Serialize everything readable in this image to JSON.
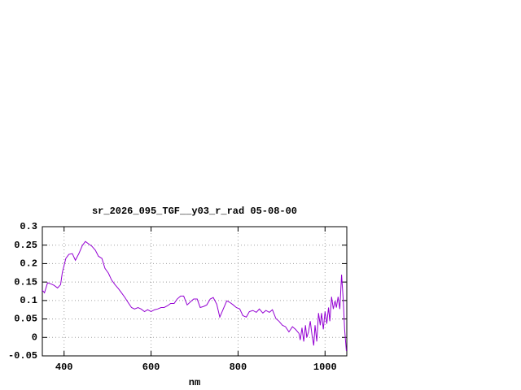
{
  "chart_data": {
    "type": "line",
    "title": "sr_2026_095_TGF__y03_r_rad 05-08-00",
    "x_label": "nm",
    "xlim": [
      350,
      1050
    ],
    "xticks": [
      400,
      600,
      800,
      1000
    ],
    "ylim": [
      -0.05,
      0.3
    ],
    "yticks": [
      0.3,
      0.25,
      0.2,
      0.15,
      0.1,
      0.05,
      0,
      -0.05
    ],
    "grid": true,
    "series": [
      {
        "color": "#9400d3",
        "x": [
          350,
          355,
          362,
          370,
          377,
          385,
          392,
          396,
          404,
          411,
          419,
          426,
          434,
          442,
          449,
          457,
          464,
          472,
          479,
          487,
          494,
          502,
          509,
          517,
          525,
          532,
          540,
          547,
          555,
          562,
          570,
          577,
          585,
          592,
          600,
          608,
          615,
          623,
          630,
          638,
          645,
          653,
          660,
          668,
          675,
          683,
          691,
          698,
          706,
          713,
          721,
          728,
          736,
          743,
          751,
          758,
          766,
          774,
          781,
          789,
          796,
          804,
          811,
          819,
          826,
          834,
          842,
          849,
          857,
          864,
          872,
          879,
          887,
          894,
          902,
          909,
          917,
          925,
          932,
          940,
          943,
          947,
          951,
          955,
          958,
          962,
          966,
          970,
          974,
          977,
          981,
          985,
          989,
          992,
          996,
          1000,
          1004,
          1008,
          1011,
          1015,
          1019,
          1023,
          1026,
          1030,
          1034,
          1038,
          1042,
          1045,
          1049
        ],
        "values": [
          0.128,
          0.121,
          0.148,
          0.145,
          0.141,
          0.134,
          0.143,
          0.176,
          0.214,
          0.225,
          0.227,
          0.209,
          0.227,
          0.249,
          0.26,
          0.253,
          0.247,
          0.236,
          0.22,
          0.214,
          0.187,
          0.174,
          0.156,
          0.143,
          0.132,
          0.121,
          0.108,
          0.095,
          0.081,
          0.077,
          0.081,
          0.077,
          0.07,
          0.075,
          0.07,
          0.075,
          0.077,
          0.081,
          0.081,
          0.086,
          0.092,
          0.092,
          0.104,
          0.112,
          0.112,
          0.088,
          0.097,
          0.104,
          0.104,
          0.081,
          0.084,
          0.088,
          0.104,
          0.108,
          0.09,
          0.055,
          0.077,
          0.099,
          0.095,
          0.088,
          0.081,
          0.077,
          0.059,
          0.055,
          0.07,
          0.073,
          0.068,
          0.077,
          0.066,
          0.073,
          0.068,
          0.075,
          0.051,
          0.044,
          0.033,
          0.029,
          0.015,
          0.029,
          0.022,
          0.011,
          -0.007,
          0.026,
          -0.011,
          0.033,
          0,
          0.015,
          0.044,
          0.007,
          -0.022,
          0.033,
          -0.011,
          0.066,
          0.033,
          0.066,
          0.022,
          0.07,
          0.037,
          0.081,
          0.044,
          0.11,
          0.077,
          0.099,
          0.081,
          0.11,
          0.077,
          0.17,
          0.099,
          0.022,
          -0.037
        ]
      }
    ]
  }
}
